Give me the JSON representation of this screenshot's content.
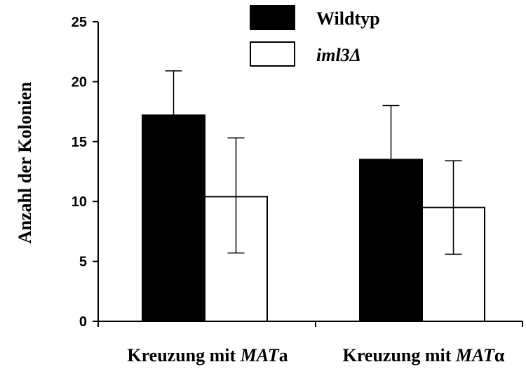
{
  "chart_data": {
    "type": "bar",
    "ylabel": "Anzahl der Kolonien",
    "ylim": [
      0,
      25
    ],
    "yticks": [
      0,
      5,
      10,
      15,
      20,
      25
    ],
    "categories": [
      {
        "prefix": "Kreuzung mit ",
        "italic": "MAT",
        "suffix": "a"
      },
      {
        "prefix": "Kreuzung mit ",
        "italic": "MAT",
        "suffix": "α"
      }
    ],
    "series": [
      {
        "name": "Wildtyp",
        "label_italic": false,
        "color": "#000000",
        "values": [
          17.2,
          13.5
        ],
        "error_upper": [
          20.9,
          18.0
        ],
        "error_lower": [
          17.2,
          13.5
        ]
      },
      {
        "name": "iml3Δ",
        "label_italic": true,
        "color": "#ffffff",
        "values": [
          10.4,
          9.5
        ],
        "error_upper": [
          15.3,
          13.4
        ],
        "error_lower": [
          5.7,
          5.6
        ]
      }
    ],
    "legend_position": "top-center",
    "grid": false
  }
}
